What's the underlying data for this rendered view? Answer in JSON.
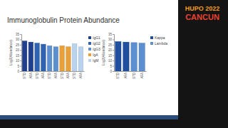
{
  "header": {
    "title": "Immunoglobulin Protein Abundance",
    "logo": [
      "HUPO 2022",
      "CANCUN"
    ]
  },
  "chart_data": [
    {
      "type": "bar",
      "y_label": "Log2(Abundance)",
      "categories": [
        "STD",
        "AFA",
        "STD",
        "AFA",
        "STD",
        "AFA",
        "STD",
        "AFA",
        "STD",
        "AFA"
      ],
      "ylim": [
        0,
        35
      ],
      "yticks": [
        0,
        5,
        10,
        15,
        20,
        25,
        30,
        35
      ],
      "legend": "right",
      "series": [
        {
          "name": "IgG1",
          "color": "#1f3f8f",
          "values": [
            28.5,
            27.5,
            null,
            null,
            null,
            null,
            null,
            null,
            null,
            null
          ]
        },
        {
          "name": "IgG2",
          "color": "#2f62b0",
          "values": [
            null,
            null,
            26.5,
            25.5,
            null,
            null,
            null,
            null,
            null,
            null
          ]
        },
        {
          "name": "IgG3",
          "color": "#5b8fd0",
          "values": [
            null,
            null,
            null,
            null,
            24,
            23,
            null,
            null,
            null,
            null
          ]
        },
        {
          "name": "IgA",
          "color": "#e8a13a",
          "values": [
            null,
            null,
            null,
            null,
            null,
            null,
            24,
            23,
            null,
            null
          ]
        },
        {
          "name": "IgM",
          "color": "#b9d3ee",
          "values": [
            null,
            null,
            null,
            null,
            null,
            null,
            null,
            null,
            26,
            23
          ]
        }
      ]
    },
    {
      "type": "bar",
      "y_label": "Log2(Abundance)",
      "categories": [
        "STD",
        "AFA",
        "STD",
        "AFA"
      ],
      "ylim": [
        0,
        35
      ],
      "yticks": [
        0,
        5,
        10,
        15,
        20,
        25,
        30,
        35
      ],
      "legend": "right",
      "series": [
        {
          "name": "Kappa",
          "color": "#1f4f9f",
          "values": [
            28,
            27.5,
            null,
            null
          ]
        },
        {
          "name": "Lambda",
          "color": "#5b8fd0",
          "values": [
            null,
            null,
            27,
            26.5
          ]
        }
      ]
    }
  ]
}
